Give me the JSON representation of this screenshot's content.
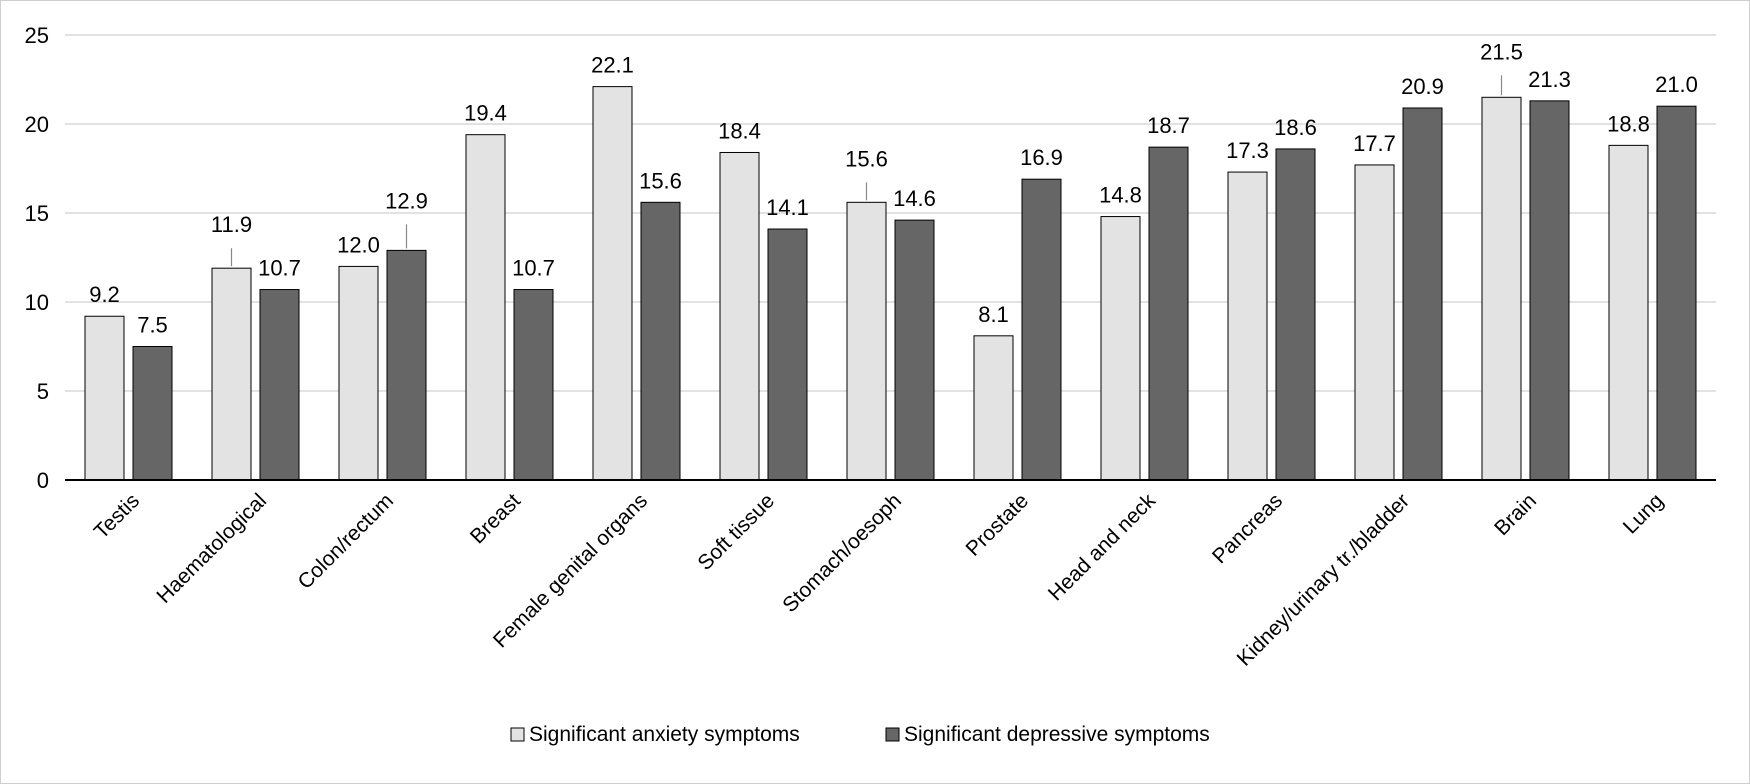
{
  "chart_data": {
    "type": "bar",
    "title": "",
    "xlabel": "",
    "ylabel": "",
    "ylim": [
      0,
      25
    ],
    "yticks": [
      0,
      5,
      10,
      15,
      20,
      25
    ],
    "grid": true,
    "legend_position": "bottom-center",
    "categories": [
      "Testis",
      "Haematological",
      "Colon/rectum",
      "Breast",
      "Female genital organs",
      "Soft tissue",
      "Stomach/oesoph",
      "Prostate",
      "Head and neck",
      "Pancreas",
      "Kidney/urinary tr./bladder",
      "Brain",
      "Lung"
    ],
    "series": [
      {
        "name": "Significant anxiety symptoms",
        "color": "#e3e3e3",
        "values": [
          9.2,
          11.9,
          12.0,
          19.4,
          22.1,
          18.4,
          15.6,
          8.1,
          14.8,
          17.3,
          17.7,
          21.5,
          18.8
        ],
        "labels": [
          "9.2",
          "11.9",
          "12.0",
          "19.4",
          "22.1",
          "18.4",
          "15.6",
          "8.1",
          "14.8",
          "17.3",
          "17.7",
          "21.5",
          "18.8"
        ]
      },
      {
        "name": "Significant depressive symptoms",
        "color": "#666666",
        "values": [
          7.5,
          10.7,
          12.9,
          10.7,
          15.6,
          14.1,
          14.6,
          16.9,
          18.7,
          18.6,
          20.9,
          21.3,
          21.0
        ],
        "labels": [
          "7.5",
          "10.7",
          "12.9",
          "10.7",
          "15.6",
          "14.1",
          "14.6",
          "16.9",
          "18.7",
          "18.6",
          "20.9",
          "21.3",
          "21.0"
        ]
      }
    ]
  }
}
